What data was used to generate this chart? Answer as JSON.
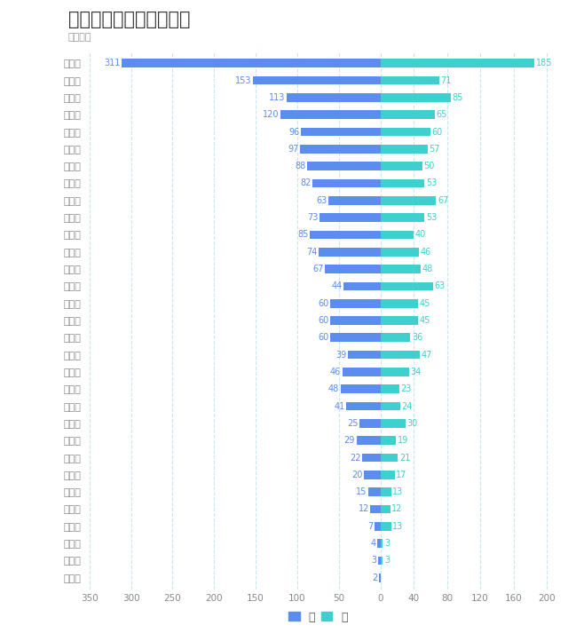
{
  "title": "各省份人数（除湖南省）",
  "unit_label": "单位：人",
  "categories": [
    "广东省",
    "河北省",
    "四川省",
    "山东省",
    "江西省",
    "安徽省",
    "浙江省",
    "内蒙古",
    "广西区",
    "河南省",
    "江苏省",
    "甘肃省",
    "福建省",
    "云南省",
    "湖北省",
    "海南省",
    "陕西省",
    "重庆市",
    "黑龙江",
    "辽宁省",
    "新疆区",
    "宁夏区",
    "山西省",
    "贵州省",
    "天津市",
    "青海省",
    "吉林省",
    "上海市",
    "西藏区",
    "北京市",
    "台湾省"
  ],
  "male": [
    311,
    153,
    113,
    120,
    96,
    97,
    88,
    82,
    63,
    73,
    85,
    74,
    67,
    44,
    60,
    60,
    60,
    39,
    46,
    48,
    41,
    25,
    29,
    22,
    20,
    15,
    12,
    7,
    4,
    3,
    2
  ],
  "female": [
    185,
    71,
    85,
    65,
    60,
    57,
    50,
    53,
    67,
    53,
    40,
    46,
    48,
    63,
    45,
    45,
    36,
    47,
    34,
    23,
    24,
    30,
    19,
    21,
    17,
    13,
    12,
    13,
    3,
    3,
    0
  ],
  "male_color": "#5B8DEF",
  "female_color": "#3ECFCF",
  "male_label": "男",
  "female_label": "女",
  "bg_color": "#ffffff",
  "grid_color": "#c8e6f0",
  "label_color_male": "#5B8DEF",
  "label_color_female": "#3ECFCF",
  "title_color": "#333333",
  "unit_color": "#999999",
  "xlim_left": -355,
  "xlim_right": 205,
  "xticks": [
    -350,
    -300,
    -250,
    -200,
    -150,
    -100,
    -50,
    0,
    40,
    80,
    120,
    160,
    200
  ],
  "xtick_labels": [
    "350",
    "300",
    "250",
    "200",
    "150",
    "100",
    "50",
    "0",
    "40",
    "80",
    "120",
    "160",
    "200"
  ]
}
